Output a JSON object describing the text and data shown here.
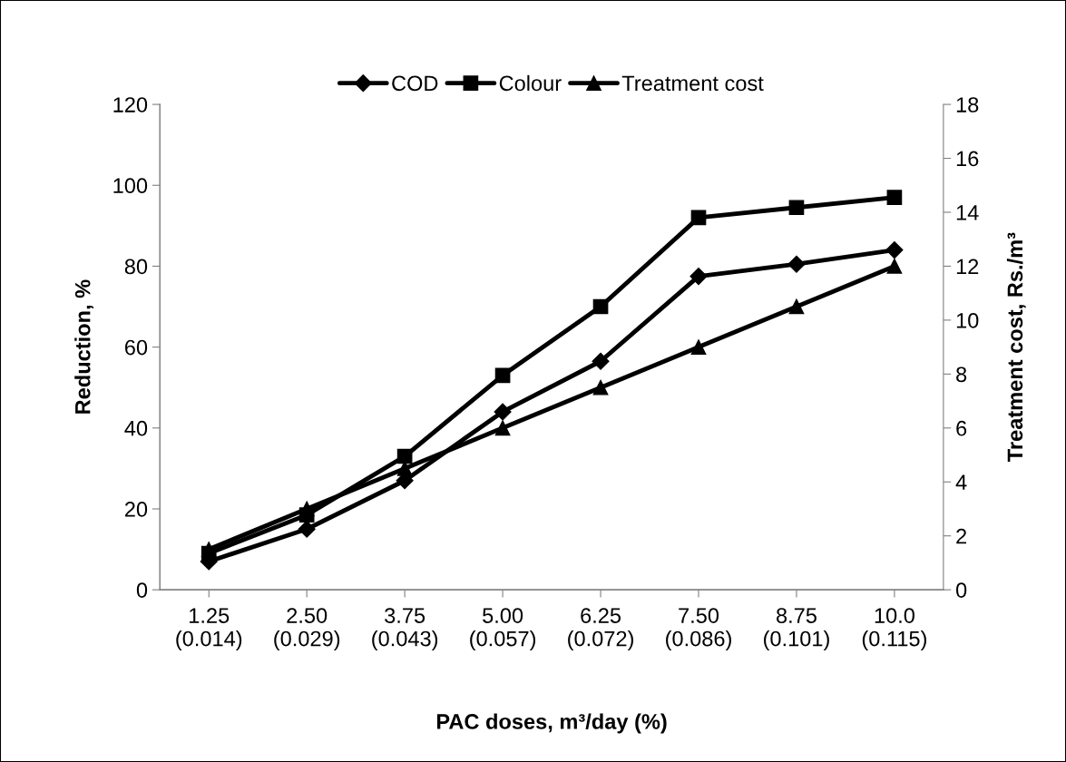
{
  "chart_data": {
    "type": "line",
    "xlabel": "PAC doses, m³/day (%)",
    "ylabel": "Reduction, %",
    "y2label": "Treatment cost, Rs./m³",
    "categories": [
      "1.25\n(0.014)",
      "2.50\n(0.029)",
      "3.75\n(0.043)",
      "5.00\n(0.057)",
      "6.25\n(0.072)",
      "7.50\n(0.086)",
      "8.75\n(0.101)",
      "10.0\n(0.115)"
    ],
    "series": [
      {
        "name": "COD",
        "color": "#000000",
        "marker": "diamond",
        "values": [
          7,
          15,
          27,
          44,
          56.5,
          77.5,
          80.5,
          84
        ]
      },
      {
        "name": "Colour",
        "color": "#000000",
        "marker": "square",
        "values": [
          9,
          18.5,
          33,
          53,
          70,
          92,
          94.5,
          97
        ]
      },
      {
        "name": "Treatment cost",
        "color": "#000000",
        "marker": "triangle",
        "axis": "y2",
        "values": [
          1.5,
          3,
          4.5,
          6,
          7.5,
          9,
          10.5,
          12
        ]
      }
    ],
    "ylim": [
      0,
      120
    ],
    "yticks": [
      0,
      20,
      40,
      60,
      80,
      100,
      120
    ],
    "y2lim": [
      0,
      18
    ],
    "y2ticks": [
      0,
      2,
      4,
      6,
      8,
      10,
      12,
      14,
      16,
      18
    ],
    "legend": "top",
    "grid": false,
    "line_style": "solid"
  }
}
